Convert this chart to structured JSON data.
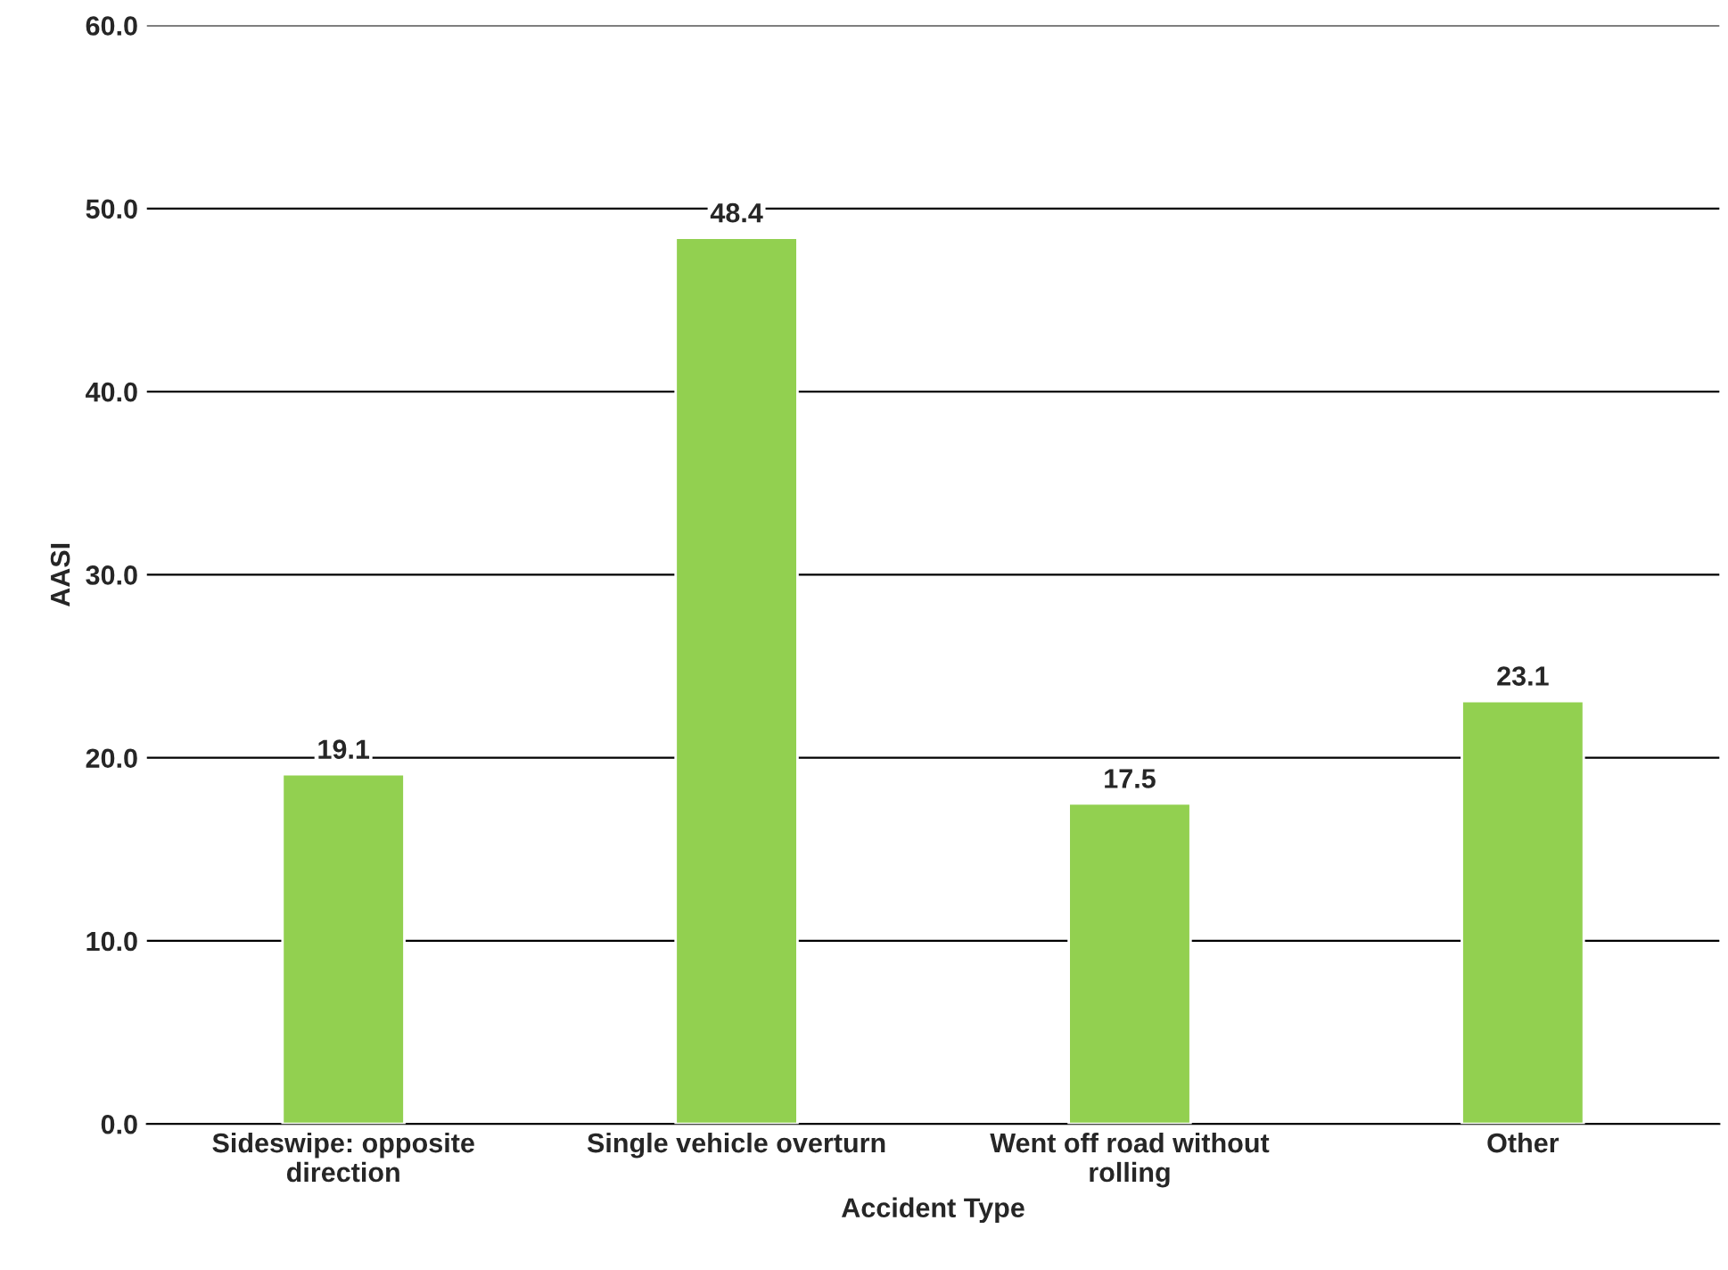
{
  "chart_data": {
    "type": "bar",
    "xlabel": "Accident Type",
    "ylabel": "AASI",
    "categories": [
      "Sideswipe: opposite\ndirection",
      "Single vehicle overturn",
      "Went off road without\nrolling",
      "Other"
    ],
    "values": [
      19.1,
      48.4,
      17.5,
      23.1
    ],
    "color": "#92d050",
    "ylim": [
      0,
      60
    ],
    "yticks": [
      {
        "value": 0,
        "label": "0.0"
      },
      {
        "value": 10,
        "label": "10.0"
      },
      {
        "value": 20,
        "label": "20.0"
      },
      {
        "value": 30,
        "label": "30.0"
      },
      {
        "value": 40,
        "label": "40.0"
      },
      {
        "value": 50,
        "label": "50.0"
      },
      {
        "value": 60,
        "label": "60.0"
      }
    ],
    "grid": "y",
    "data_labels": true,
    "legend": false
  }
}
